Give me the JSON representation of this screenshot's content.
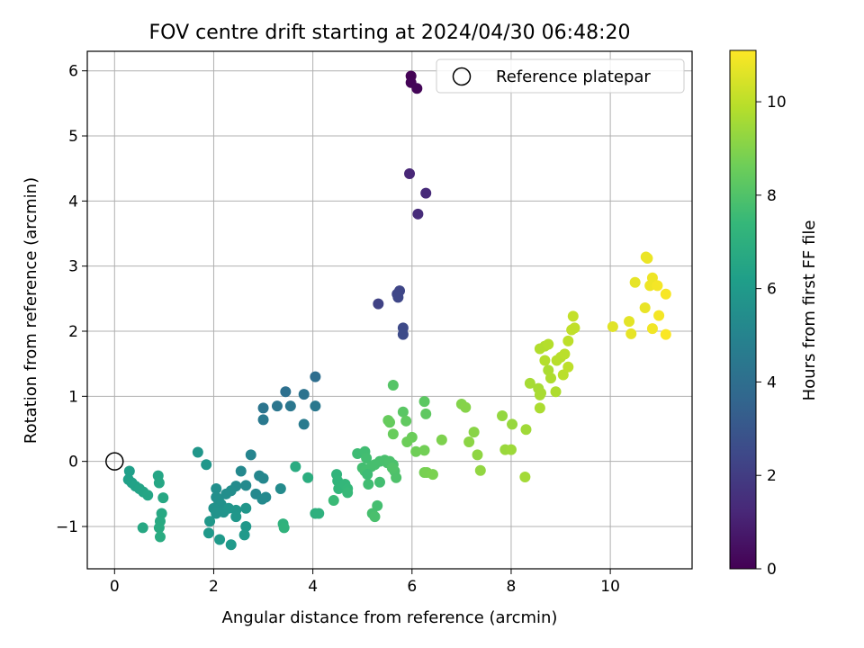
{
  "chart_data": {
    "type": "scatter",
    "title": "FOV centre drift starting at 2024/04/30 06:48:20",
    "xlabel": "Angular distance from reference (arcmin)",
    "ylabel": "Rotation from reference (arcmin)",
    "xlim": [
      -0.55,
      11.65
    ],
    "ylim": [
      -1.65,
      6.3
    ],
    "x_ticks": [
      0,
      2,
      4,
      6,
      8,
      10
    ],
    "y_ticks": [
      -1,
      0,
      1,
      2,
      3,
      4,
      5,
      6
    ],
    "grid": true,
    "legend": {
      "position": "top-right",
      "entries": [
        "Reference platepar"
      ]
    },
    "colorbar": {
      "label": "Hours from first FF file",
      "range": [
        0,
        11.1
      ],
      "ticks": [
        0,
        2,
        4,
        6,
        8,
        10
      ],
      "colormap": "viridis",
      "colormap_stops": [
        "#440154",
        "#482878",
        "#3e4989",
        "#31688e",
        "#26828e",
        "#1f9e89",
        "#35b779",
        "#6ece58",
        "#b5de2b",
        "#fde725"
      ]
    },
    "reference_point": {
      "name": "Reference platepar",
      "x": 0.0,
      "y": 0.0
    },
    "points": [
      [
        5.98,
        5.92,
        0.05
      ],
      [
        5.98,
        5.82,
        0.1
      ],
      [
        6.1,
        5.73,
        0.15
      ],
      [
        5.95,
        4.42,
        1.2
      ],
      [
        6.28,
        4.12,
        1.3
      ],
      [
        6.12,
        3.8,
        1.4
      ],
      [
        5.32,
        2.42,
        2.2
      ],
      [
        5.7,
        2.57,
        2.3
      ],
      [
        5.75,
        2.62,
        2.35
      ],
      [
        5.72,
        2.52,
        2.4
      ],
      [
        5.82,
        2.05,
        2.5
      ],
      [
        5.82,
        1.95,
        2.55
      ],
      [
        4.05,
        1.3,
        4.0
      ],
      [
        3.45,
        1.07,
        4.1
      ],
      [
        3.82,
        1.03,
        4.2
      ],
      [
        3.0,
        0.82,
        4.3
      ],
      [
        3.28,
        0.85,
        4.35
      ],
      [
        3.55,
        0.85,
        4.4
      ],
      [
        4.05,
        0.85,
        4.45
      ],
      [
        3.0,
        0.64,
        4.5
      ],
      [
        3.82,
        0.57,
        4.6
      ],
      [
        1.68,
        0.14,
        5.8
      ],
      [
        1.85,
        -0.05,
        5.85
      ],
      [
        0.3,
        -0.15,
        6.2
      ],
      [
        0.28,
        -0.28,
        6.25
      ],
      [
        0.35,
        -0.33,
        6.3
      ],
      [
        0.42,
        -0.38,
        6.35
      ],
      [
        0.5,
        -0.42,
        6.4
      ],
      [
        0.58,
        -0.47,
        6.45
      ],
      [
        0.67,
        -0.52,
        6.5
      ],
      [
        0.88,
        -0.22,
        6.5
      ],
      [
        0.9,
        -0.33,
        6.55
      ],
      [
        0.98,
        -0.56,
        6.6
      ],
      [
        0.95,
        -0.8,
        6.65
      ],
      [
        0.92,
        -0.92,
        6.7
      ],
      [
        0.9,
        -1.02,
        6.75
      ],
      [
        0.92,
        -1.16,
        6.8
      ],
      [
        0.57,
        -1.02,
        6.6
      ],
      [
        2.75,
        0.1,
        5.0
      ],
      [
        2.55,
        -0.15,
        5.2
      ],
      [
        2.65,
        -0.37,
        5.3
      ],
      [
        2.45,
        -0.38,
        5.35
      ],
      [
        2.35,
        -0.45,
        5.4
      ],
      [
        2.25,
        -0.5,
        5.45
      ],
      [
        2.05,
        -0.42,
        5.5
      ],
      [
        2.05,
        -0.55,
        5.5
      ],
      [
        2.1,
        -0.6,
        5.55
      ],
      [
        2.15,
        -0.66,
        5.6
      ],
      [
        2.0,
        -0.72,
        5.65
      ],
      [
        2.2,
        -0.78,
        5.7
      ],
      [
        2.05,
        -0.8,
        5.7
      ],
      [
        2.3,
        -0.72,
        5.75
      ],
      [
        2.45,
        -0.75,
        5.8
      ],
      [
        2.65,
        -0.72,
        5.8
      ],
      [
        2.45,
        -0.85,
        5.85
      ],
      [
        1.92,
        -0.92,
        5.9
      ],
      [
        2.65,
        -1.0,
        5.9
      ],
      [
        1.9,
        -1.1,
        5.95
      ],
      [
        2.62,
        -1.13,
        5.95
      ],
      [
        2.12,
        -1.2,
        6.0
      ],
      [
        2.35,
        -1.28,
        6.0
      ],
      [
        2.92,
        -0.22,
        5.1
      ],
      [
        3.0,
        -0.26,
        5.15
      ],
      [
        2.85,
        -0.5,
        5.2
      ],
      [
        3.05,
        -0.55,
        5.25
      ],
      [
        2.98,
        -0.58,
        5.3
      ],
      [
        3.35,
        -0.42,
        5.35
      ],
      [
        3.65,
        -0.08,
        6.8
      ],
      [
        3.9,
        -0.25,
        6.9
      ],
      [
        4.05,
        -0.8,
        7.0
      ],
      [
        4.12,
        -0.8,
        7.05
      ],
      [
        3.4,
        -0.96,
        7.1
      ],
      [
        3.42,
        -1.02,
        7.15
      ],
      [
        4.48,
        -0.2,
        7.2
      ],
      [
        4.5,
        -0.3,
        7.25
      ],
      [
        4.52,
        -0.42,
        7.3
      ],
      [
        4.65,
        -0.35,
        7.35
      ],
      [
        4.7,
        -0.42,
        7.4
      ],
      [
        4.7,
        -0.48,
        7.45
      ],
      [
        4.42,
        -0.6,
        7.5
      ],
      [
        4.9,
        0.12,
        7.6
      ],
      [
        5.05,
        0.15,
        7.65
      ],
      [
        5.08,
        0.05,
        7.7
      ],
      [
        5.0,
        -0.1,
        7.7
      ],
      [
        5.05,
        -0.15,
        7.75
      ],
      [
        5.18,
        -0.08,
        7.75
      ],
      [
        5.25,
        -0.05,
        7.8
      ],
      [
        5.35,
        0.0,
        7.8
      ],
      [
        5.45,
        0.02,
        7.85
      ],
      [
        5.5,
        -0.02,
        7.85
      ],
      [
        5.55,
        0.0,
        7.9
      ],
      [
        5.62,
        -0.05,
        7.9
      ],
      [
        5.65,
        -0.15,
        7.95
      ],
      [
        5.68,
        -0.25,
        7.95
      ],
      [
        5.6,
        -0.1,
        8.0
      ],
      [
        5.1,
        -0.2,
        7.6
      ],
      [
        5.12,
        -0.35,
        7.65
      ],
      [
        5.35,
        -0.32,
        7.7
      ],
      [
        5.3,
        -0.68,
        7.75
      ],
      [
        5.2,
        -0.8,
        7.8
      ],
      [
        5.25,
        -0.85,
        7.85
      ],
      [
        5.62,
        1.17,
        8.1
      ],
      [
        5.82,
        0.76,
        8.2
      ],
      [
        6.25,
        0.92,
        8.25
      ],
      [
        6.28,
        0.73,
        8.3
      ],
      [
        5.88,
        0.62,
        8.35
      ],
      [
        5.55,
        0.6,
        8.4
      ],
      [
        5.52,
        0.63,
        8.45
      ],
      [
        5.62,
        0.42,
        8.5
      ],
      [
        6.0,
        0.37,
        8.55
      ],
      [
        5.9,
        0.3,
        8.6
      ],
      [
        6.08,
        0.15,
        8.65
      ],
      [
        6.25,
        0.17,
        8.7
      ],
      [
        6.25,
        -0.17,
        8.75
      ],
      [
        6.3,
        -0.17,
        8.8
      ],
      [
        6.42,
        -0.2,
        8.85
      ],
      [
        6.6,
        0.33,
        8.9
      ],
      [
        7.0,
        0.88,
        9.0
      ],
      [
        7.08,
        0.83,
        9.05
      ],
      [
        7.25,
        0.45,
        9.1
      ],
      [
        7.15,
        0.3,
        9.15
      ],
      [
        7.32,
        0.1,
        9.2
      ],
      [
        7.38,
        -0.14,
        9.25
      ],
      [
        7.82,
        0.7,
        9.3
      ],
      [
        8.02,
        0.57,
        9.35
      ],
      [
        7.88,
        0.18,
        9.4
      ],
      [
        8.0,
        0.18,
        9.45
      ],
      [
        8.3,
        0.49,
        9.5
      ],
      [
        8.28,
        -0.24,
        9.55
      ],
      [
        8.38,
        1.2,
        9.6
      ],
      [
        8.55,
        1.12,
        9.6
      ],
      [
        8.58,
        1.02,
        9.65
      ],
      [
        8.6,
        1.05,
        9.65
      ],
      [
        8.58,
        0.82,
        9.7
      ],
      [
        8.75,
        1.4,
        9.7
      ],
      [
        8.8,
        1.28,
        9.75
      ],
      [
        8.9,
        1.07,
        9.75
      ],
      [
        8.58,
        1.73,
        9.8
      ],
      [
        8.68,
        1.77,
        9.8
      ],
      [
        8.75,
        1.8,
        9.85
      ],
      [
        8.68,
        1.55,
        9.85
      ],
      [
        8.92,
        1.55,
        9.9
      ],
      [
        9.0,
        1.6,
        9.9
      ],
      [
        9.08,
        1.65,
        9.95
      ],
      [
        9.05,
        1.33,
        9.95
      ],
      [
        9.15,
        1.45,
        10.0
      ],
      [
        9.15,
        1.85,
        10.0
      ],
      [
        9.22,
        2.02,
        10.05
      ],
      [
        9.28,
        2.05,
        10.05
      ],
      [
        9.25,
        2.23,
        10.1
      ],
      [
        10.05,
        2.07,
        10.6
      ],
      [
        10.38,
        2.15,
        10.65
      ],
      [
        10.42,
        1.96,
        10.7
      ],
      [
        10.5,
        2.75,
        10.7
      ],
      [
        10.7,
        2.36,
        10.75
      ],
      [
        10.72,
        3.14,
        10.8
      ],
      [
        10.75,
        3.12,
        10.8
      ],
      [
        10.8,
        2.7,
        10.85
      ],
      [
        10.85,
        2.82,
        10.85
      ],
      [
        10.85,
        2.04,
        10.9
      ],
      [
        10.95,
        2.7,
        10.95
      ],
      [
        10.98,
        2.24,
        10.95
      ],
      [
        11.12,
        2.57,
        11.0
      ],
      [
        11.12,
        1.95,
        11.05
      ]
    ]
  }
}
